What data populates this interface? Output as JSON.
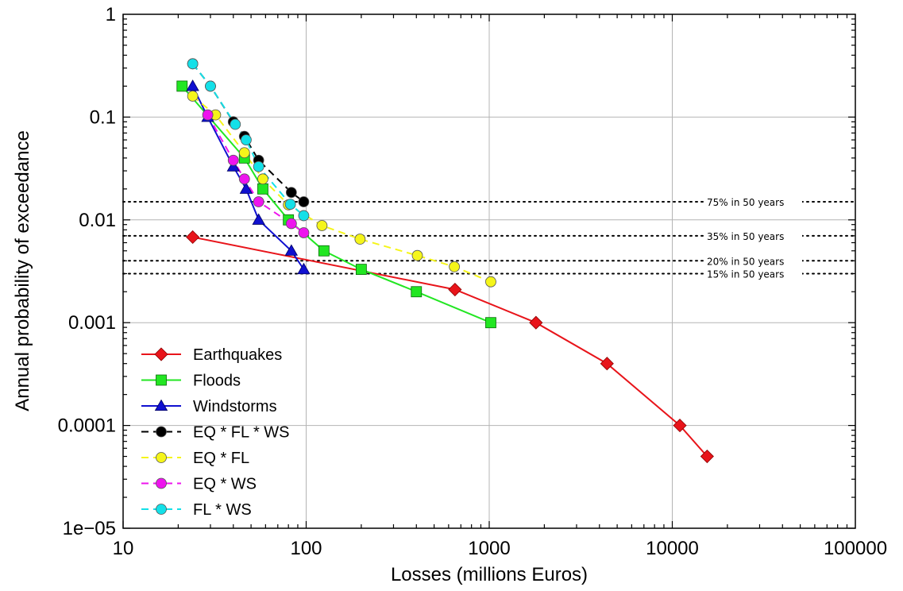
{
  "chart_data": {
    "type": "line",
    "xlabel": "Losses (millions Euros)",
    "ylabel": "Annual probability of exceedance",
    "xscale": "log",
    "yscale": "log",
    "xlim": [
      10,
      100000
    ],
    "ylim": [
      1e-05,
      1
    ],
    "x_ticks": [
      "10",
      "100",
      "1000",
      "10000",
      "100000"
    ],
    "y_ticks": [
      "1e−05",
      "0.0001",
      "0.001",
      "0.01",
      "0.1",
      "1"
    ],
    "grid": true,
    "legend_position": "bottom-left",
    "reference_lines": [
      {
        "y": 0.015,
        "label": "75% in 50 years"
      },
      {
        "y": 0.007,
        "label": "35% in 50 years"
      },
      {
        "y": 0.004,
        "label": "20% in 50 years"
      },
      {
        "y": 0.003,
        "label": "15% in 50 years"
      }
    ],
    "series": [
      {
        "name": "Earthquakes",
        "color": "#e8141a",
        "marker": "diamond",
        "dashed": false,
        "x": [
          24,
          650,
          1800,
          4400,
          11000,
          15500
        ],
        "y": [
          0.0068,
          0.0021,
          0.001,
          0.0004,
          0.0001,
          5e-05
        ]
      },
      {
        "name": "Floods",
        "color": "#22e622",
        "marker": "square",
        "dashed": false,
        "x": [
          21,
          46,
          58,
          80,
          125,
          200,
          400,
          1020
        ],
        "y": [
          0.2,
          0.04,
          0.02,
          0.01,
          0.005,
          0.0033,
          0.002,
          0.001
        ]
      },
      {
        "name": "Windstorms",
        "color": "#1010d0",
        "marker": "triangle",
        "dashed": false,
        "x": [
          24,
          29,
          40,
          47,
          55,
          83,
          97
        ],
        "y": [
          0.2,
          0.1,
          0.033,
          0.02,
          0.01,
          0.005,
          0.0033
        ]
      },
      {
        "name": "EQ * FL * WS",
        "color": "#000000",
        "marker": "circle",
        "dashed": true,
        "x": [
          24,
          30,
          40,
          46,
          55,
          83,
          97
        ],
        "y": [
          0.33,
          0.2,
          0.09,
          0.065,
          0.038,
          0.0185,
          0.015
        ]
      },
      {
        "name": "EQ * FL",
        "color": "#f5f51a",
        "marker": "circle",
        "dashed": true,
        "x": [
          24,
          32,
          46,
          58,
          80,
          122,
          197,
          405,
          645,
          1020
        ],
        "y": [
          0.16,
          0.105,
          0.045,
          0.025,
          0.014,
          0.0088,
          0.0065,
          0.0045,
          0.0035,
          0.0025
        ]
      },
      {
        "name": "EQ * WS",
        "color": "#ee14ee",
        "marker": "circle",
        "dashed": true,
        "x": [
          29,
          40,
          46,
          55,
          83,
          97
        ],
        "y": [
          0.105,
          0.038,
          0.025,
          0.015,
          0.0092,
          0.0075
        ]
      },
      {
        "name": "FL * WS",
        "color": "#14e0e8",
        "marker": "circle",
        "dashed": true,
        "x": [
          24,
          30,
          41,
          47,
          55,
          82,
          97
        ],
        "y": [
          0.33,
          0.2,
          0.085,
          0.06,
          0.033,
          0.0142,
          0.011
        ]
      }
    ]
  }
}
